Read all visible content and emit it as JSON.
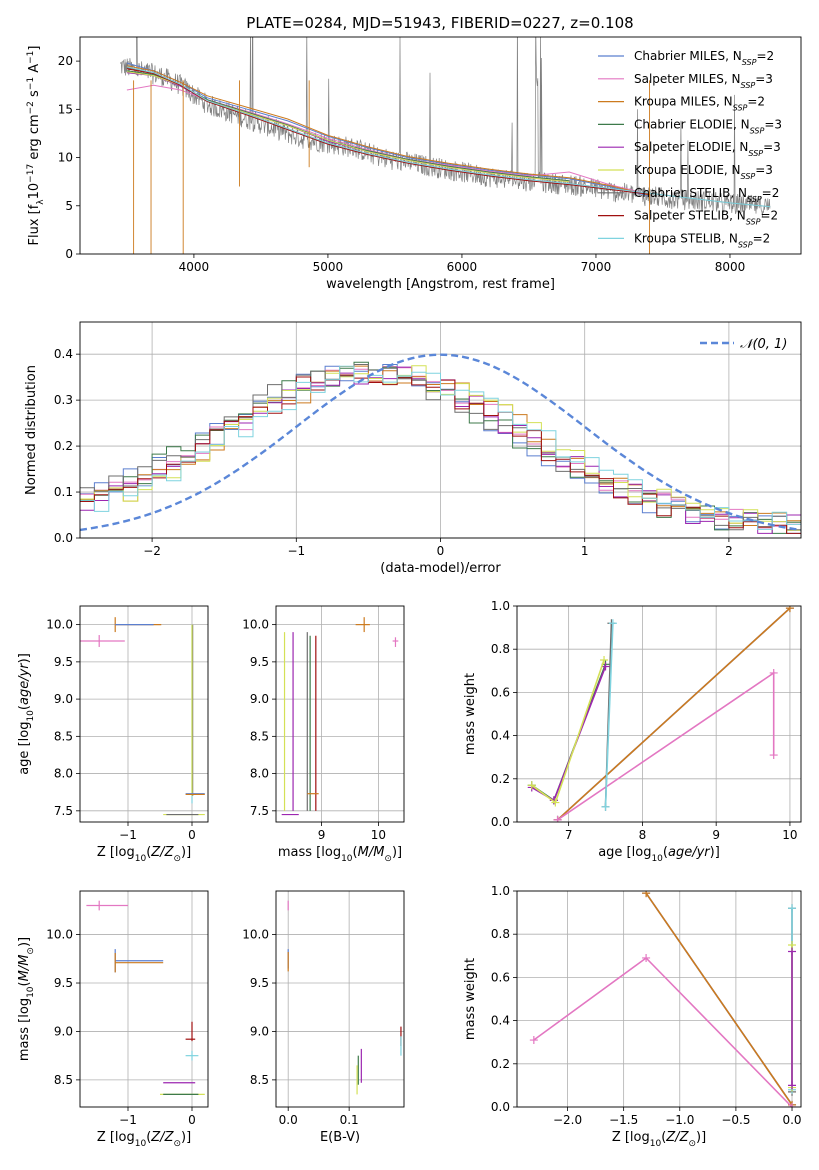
{
  "figure_title": "PLATE=0284, MJD=51943, FIBERID=0227, z=0.108",
  "colors": {
    "Chabrier MILES": "#5b7fcf",
    "Salpeter MILES": "#e377c2",
    "Kroupa MILES": "#cc7a1e",
    "Chabrier ELODIE": "#3d7a4a",
    "Salpeter ELODIE": "#9c27b0",
    "Kroupa ELODIE": "#d4e157",
    "Chabrier STELIB": "#6e6e6e",
    "Salpeter STELIB": "#a01010",
    "Kroupa STELIB": "#7fd3df",
    "data": "#808080",
    "gauss": "#5b87d8",
    "grid": "#b0b0b0"
  },
  "chart_data": [
    {
      "type": "line",
      "xlabel": "wavelength [Angstrom, rest frame]",
      "ylabel": "Flux [f_λ10^−17 erg cm^−2 s^−1 A^−1]",
      "xlim": [
        3150,
        8530
      ],
      "ylim": [
        0,
        22.5
      ],
      "xticks": [
        4000,
        5000,
        6000,
        7000,
        8000
      ],
      "yticks": [
        0,
        5,
        10,
        15,
        20
      ],
      "grid": false,
      "legend": "top-right",
      "data_spectrum": {
        "wave": [
          3450,
          3600,
          3750,
          3900,
          4000,
          4100,
          4200,
          4400,
          4600,
          4800,
          5000,
          5200,
          5400,
          5600,
          5800,
          6000,
          6200,
          6400,
          6600,
          6800,
          7000,
          7200,
          7400,
          7600,
          7800,
          8000,
          8200,
          8300
        ],
        "flux": [
          19.5,
          19.0,
          18.5,
          17.5,
          16.5,
          15.5,
          15.0,
          14.0,
          13.0,
          12.0,
          11.5,
          11.0,
          10.0,
          9.5,
          9.0,
          8.5,
          8.0,
          7.7,
          7.4,
          7.2,
          6.8,
          6.3,
          6.0,
          5.7,
          5.5,
          5.2,
          5.0,
          4.9
        ]
      },
      "series": [
        {
          "name": "Chabrier MILES, N_SSP=2",
          "x": [
            3500,
            3700,
            3900,
            4100,
            4400,
            4700,
            5000,
            5300,
            5600,
            5900,
            6200,
            6500,
            6800,
            7100,
            7400
          ],
          "y": [
            19.8,
            19.0,
            17.8,
            16.2,
            15.0,
            13.8,
            12.2,
            11.0,
            10.0,
            9.3,
            8.7,
            8.2,
            7.8,
            7.0,
            6.0
          ]
        },
        {
          "name": "Salpeter MILES, N_SSP=3",
          "x": [
            3500,
            3700,
            3900,
            4100,
            4400,
            4700,
            5000,
            5300,
            5600,
            5900,
            6200,
            6500,
            6800,
            7100,
            7400
          ],
          "y": [
            17.0,
            17.5,
            17.0,
            16.0,
            14.8,
            13.5,
            12.0,
            10.8,
            9.8,
            9.2,
            8.6,
            8.1,
            8.5,
            7.2,
            6.2
          ]
        },
        {
          "name": "Kroupa MILES, N_SSP=2",
          "x": [
            3500,
            3700,
            3900,
            4100,
            4400,
            4700,
            5000,
            5300,
            5600,
            5900,
            6200,
            6500,
            6800,
            7100,
            7400
          ],
          "y": [
            19.5,
            19.0,
            17.8,
            16.4,
            15.2,
            14.0,
            12.3,
            11.1,
            10.1,
            9.4,
            8.8,
            8.3,
            7.9,
            7.1,
            6.1
          ]
        },
        {
          "name": "Chabrier ELODIE, N_SSP=3",
          "x": [
            3500,
            3700,
            3900,
            4100,
            4400,
            4700,
            5000,
            5300,
            5600,
            5900,
            6200,
            6500,
            6800
          ],
          "y": [
            19.0,
            18.6,
            17.5,
            16.0,
            14.7,
            13.4,
            11.8,
            10.7,
            9.8,
            9.1,
            8.5,
            8.0,
            7.6
          ]
        },
        {
          "name": "Salpeter ELODIE, N_SSP=3",
          "x": [
            3500,
            3700,
            3900,
            4100,
            4400,
            4700,
            5000,
            5300,
            5600,
            5900,
            6200,
            6500,
            6800
          ],
          "y": [
            18.8,
            18.5,
            17.4,
            15.9,
            14.6,
            13.3,
            11.7,
            10.6,
            9.7,
            9.0,
            8.4,
            7.9,
            7.5
          ]
        },
        {
          "name": "Kroupa ELODIE, N_SSP=3",
          "x": [
            3500,
            3700,
            3900,
            4100,
            4400,
            4700,
            5000,
            5300,
            5600,
            5900,
            6200,
            6500,
            6800
          ],
          "y": [
            18.9,
            18.5,
            17.5,
            15.9,
            14.6,
            13.3,
            11.8,
            10.6,
            9.7,
            9.0,
            8.4,
            7.9,
            7.5
          ]
        },
        {
          "name": "Chabrier STELIB, N_SSP=2",
          "x": [
            3500,
            3700,
            3900,
            4100,
            4400,
            4700,
            5000,
            5300,
            5600,
            5900,
            6200,
            6500,
            6800,
            7100,
            7400,
            7700,
            8000,
            8300
          ],
          "y": [
            19.3,
            18.8,
            17.6,
            15.9,
            14.5,
            13.0,
            11.5,
            10.4,
            9.5,
            8.8,
            8.2,
            7.7,
            7.3,
            6.8,
            6.3,
            5.8,
            5.3,
            4.9
          ]
        },
        {
          "name": "Salpeter STELIB, N_SSP=2",
          "x": [
            3500,
            3700,
            3900,
            4100,
            4400,
            4700,
            5000,
            5300,
            5600,
            5900,
            6200,
            6500,
            6800,
            7100,
            7400
          ],
          "y": [
            19.2,
            18.7,
            17.5,
            15.8,
            14.4,
            12.9,
            11.4,
            10.3,
            9.4,
            8.7,
            8.1,
            7.6,
            7.2,
            6.7,
            6.2
          ]
        },
        {
          "name": "Kroupa STELIB, N_SSP=2",
          "x": [
            3500,
            3700,
            3900,
            4100,
            4400,
            4700,
            5000,
            5300,
            5600,
            5900,
            6200,
            6500,
            6800,
            7100,
            7400,
            7700,
            8000,
            8300
          ],
          "y": [
            19.4,
            18.8,
            17.6,
            15.9,
            14.5,
            13.0,
            11.5,
            10.4,
            9.5,
            8.8,
            8.2,
            7.7,
            7.3,
            6.8,
            6.3,
            5.8,
            5.3,
            4.9
          ]
        }
      ]
    },
    {
      "type": "line",
      "xlabel": "(data-model)/error",
      "ylabel": "Normed distribution",
      "xlim": [
        -2.5,
        2.5
      ],
      "ylim": [
        0,
        0.47
      ],
      "xticks": [
        -2,
        -1,
        0,
        1,
        2
      ],
      "yticks": [
        0.0,
        0.1,
        0.2,
        0.3,
        0.4
      ],
      "grid": true,
      "legend": "top-right",
      "legend_label": "𝒩(0, 1)",
      "bin_edges_start": -2.5,
      "bin_width": 0.1
    },
    {
      "type": "scatter",
      "xlabel": "Z [log10(Z/Z⊙)]",
      "ylabel": "age  [log10(age/yr)]",
      "xlim": [
        -1.75,
        0.25
      ],
      "ylim": [
        7.35,
        10.25
      ],
      "xticks": [
        -1,
        0
      ],
      "yticks": [
        7.5,
        8.0,
        8.5,
        9.0,
        9.5,
        10.0
      ]
    },
    {
      "type": "scatter",
      "xlabel": "mass [log10(M/M⊙)]",
      "ylim": [
        7.35,
        10.25
      ],
      "xlim": [
        8.2,
        10.45
      ],
      "xticks": [
        9,
        10
      ],
      "yticks": [
        7.5,
        8.0,
        8.5,
        9.0,
        9.5,
        10.0
      ]
    },
    {
      "type": "line",
      "xlabel": "age  [log10(age/yr)]",
      "ylabel": "mass weight",
      "xlim": [
        6.3,
        10.15
      ],
      "ylim": [
        0,
        1.0
      ],
      "xticks": [
        7,
        8,
        9,
        10
      ],
      "yticks": [
        0.0,
        0.2,
        0.4,
        0.6,
        0.8,
        1.0
      ]
    },
    {
      "type": "scatter",
      "xlabel": "Z [log10(Z/Z⊙)]",
      "ylabel": "mass [log10(M/M⊙)]",
      "xlim": [
        -1.75,
        0.25
      ],
      "ylim": [
        8.22,
        10.45
      ],
      "xticks": [
        -1,
        0
      ],
      "yticks": [
        8.5,
        9.0,
        9.5,
        10.0
      ]
    },
    {
      "type": "scatter",
      "xlabel": "E(B-V)",
      "xlim": [
        -0.02,
        0.19
      ],
      "ylim": [
        8.22,
        10.45
      ],
      "xticks": [
        0.0,
        0.1
      ],
      "yticks": [
        8.5,
        9.0,
        9.5,
        10.0
      ]
    },
    {
      "type": "line",
      "xlabel": "Z [log10(Z/Z⊙)]",
      "ylabel": "mass weight",
      "xlim": [
        -2.45,
        0.08
      ],
      "ylim": [
        0,
        1.0
      ],
      "xticks": [
        -2.0,
        -1.5,
        -1.0,
        -0.5,
        0.0
      ],
      "yticks": [
        0.0,
        0.2,
        0.4,
        0.6,
        0.8,
        1.0
      ]
    }
  ]
}
